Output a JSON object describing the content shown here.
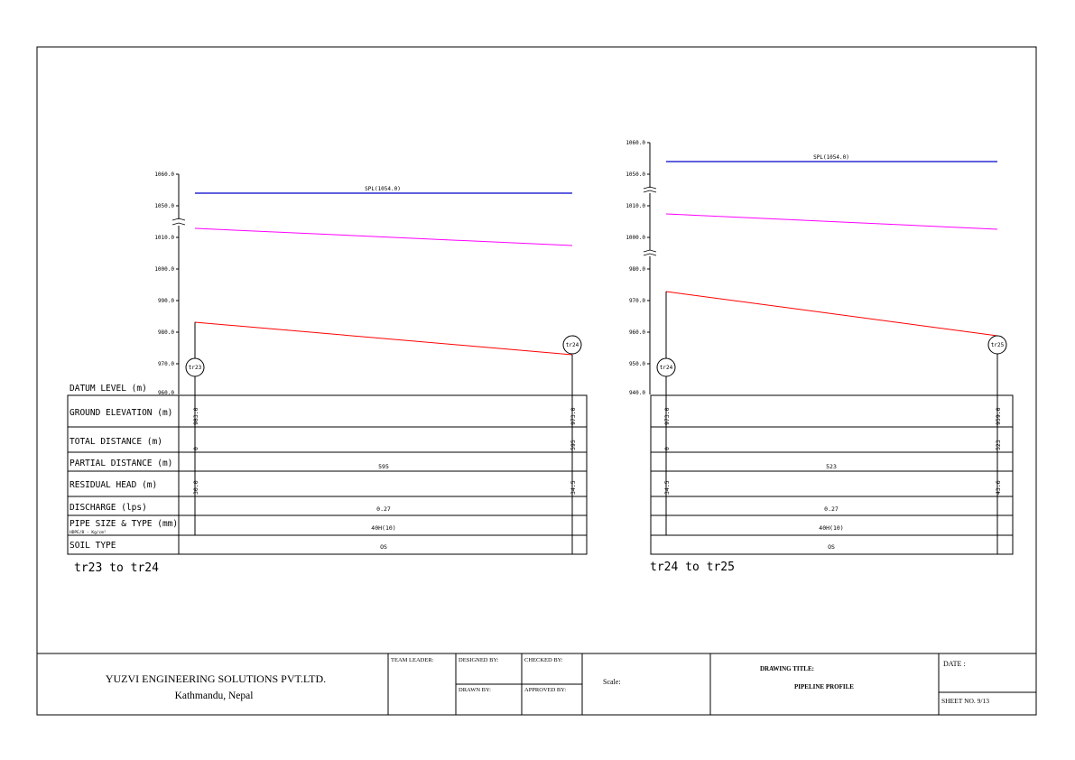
{
  "profiles": [
    {
      "caption": "tr23 to tr24",
      "y_ticks": [
        "1060.0",
        "1050.0",
        "1010.0",
        "1000.0",
        "990.0",
        "980.0",
        "970.0",
        "960.0"
      ],
      "spl_label": "SPL(1054.0)",
      "start_node": "tr23",
      "end_node": "tr24",
      "start": {
        "ground_elevation": "983.0",
        "total_distance": "0",
        "residual_head": "30.0"
      },
      "end": {
        "ground_elevation": "973.0",
        "total_distance": "595",
        "residual_head": "34.5"
      },
      "partial_distance": "595",
      "discharge": "0.27",
      "pipe_size": "40H(10)",
      "soil_type": "OS"
    },
    {
      "caption": "tr24 to tr25",
      "y_ticks": [
        "1060.0",
        "1050.0",
        "1010.0",
        "1000.0",
        "980.0",
        "970.0",
        "960.0",
        "950.0",
        "940.0"
      ],
      "spl_label": "SPL(1054.0)",
      "start_node": "tr24",
      "end_node": "tr25",
      "start": {
        "ground_elevation": "973.0",
        "total_distance": "0",
        "residual_head": "34.5"
      },
      "end": {
        "ground_elevation": "959.0",
        "total_distance": "523",
        "residual_head": "43.6"
      },
      "partial_distance": "523",
      "discharge": "0.27",
      "pipe_size": "40H(10)",
      "soil_type": "OS"
    }
  ],
  "row_labels": {
    "datum_level": "DATUM LEVEL (m)",
    "ground_elevation": "GROUND ELEVATION (m)",
    "total_distance": "TOTAL DISTANCE (m)",
    "partial_distance": "PARTIAL DISTANCE (m)",
    "residual_head": "RESIDUAL HEAD (m)",
    "discharge": "DISCHARGE (lps)",
    "pipe_size": "PIPE SIZE & TYPE (mm)",
    "pipe_size_sub": "HDPE/B - Kg/cm²",
    "soil_type": "SOIL TYPE"
  },
  "title_block": {
    "company": "YUZVI ENGINEERING SOLUTIONS PVT.LTD.",
    "location": "Kathmandu, Nepal",
    "team_leader": "TEAM LEADER:",
    "designed_by": "DESIGNED BY:",
    "checked_by": "CHECKED BY:",
    "drawn_by": "DRAWN BY:",
    "approved_by": "APPROVED BY:",
    "scale": "Scale:",
    "drawing_title_label": "DRAWING TITLE:",
    "drawing_title": "PIPELINE PROFILE",
    "date": "DATE :",
    "sheet_no": "SHEET NO. 9/13"
  },
  "colors": {
    "spl_line": "#0000cc",
    "hgl_line": "#ff00ff",
    "ground_line": "#ff0000"
  }
}
